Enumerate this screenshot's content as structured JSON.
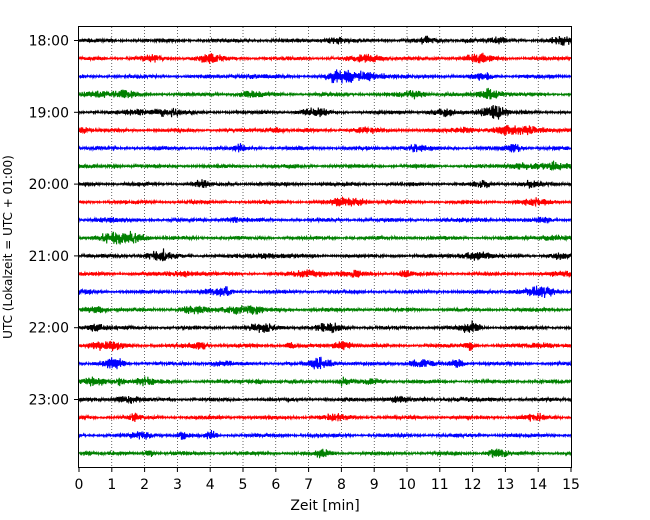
{
  "chart_data": {
    "type": "line",
    "title": "",
    "xlabel": "Zeit  [min]",
    "ylabel": "UTC (Lokalzeit = UTC + 01:00)",
    "xlim": [
      0,
      15
    ],
    "x_ticks": [
      "0",
      "1",
      "2",
      "3",
      "4",
      "5",
      "6",
      "7",
      "8",
      "9",
      "10",
      "11",
      "12",
      "13",
      "14",
      "15"
    ],
    "y_ticks": [
      "18:00",
      "19:00",
      "20:00",
      "21:00",
      "22:00",
      "23:00"
    ],
    "traces_per_hour": 4,
    "trace_minutes": 15,
    "grid": "vertical dotted at each minute",
    "traces": [
      {
        "start": "18:00",
        "color": "#000000"
      },
      {
        "start": "18:15",
        "color": "#ff0000"
      },
      {
        "start": "18:30",
        "color": "#0000ff"
      },
      {
        "start": "18:45",
        "color": "#008000"
      },
      {
        "start": "19:00",
        "color": "#000000"
      },
      {
        "start": "19:15",
        "color": "#ff0000"
      },
      {
        "start": "19:30",
        "color": "#0000ff"
      },
      {
        "start": "19:45",
        "color": "#008000"
      },
      {
        "start": "20:00",
        "color": "#000000"
      },
      {
        "start": "20:15",
        "color": "#ff0000"
      },
      {
        "start": "20:30",
        "color": "#0000ff"
      },
      {
        "start": "20:45",
        "color": "#008000"
      },
      {
        "start": "21:00",
        "color": "#000000"
      },
      {
        "start": "21:15",
        "color": "#ff0000"
      },
      {
        "start": "21:30",
        "color": "#0000ff"
      },
      {
        "start": "21:45",
        "color": "#008000"
      },
      {
        "start": "22:00",
        "color": "#000000"
      },
      {
        "start": "22:15",
        "color": "#ff0000"
      },
      {
        "start": "22:30",
        "color": "#0000ff"
      },
      {
        "start": "22:45",
        "color": "#008000"
      },
      {
        "start": "23:00",
        "color": "#000000"
      },
      {
        "start": "23:15",
        "color": "#ff0000"
      },
      {
        "start": "23:30",
        "color": "#0000ff"
      },
      {
        "start": "23:45",
        "color": "#008000"
      }
    ]
  }
}
